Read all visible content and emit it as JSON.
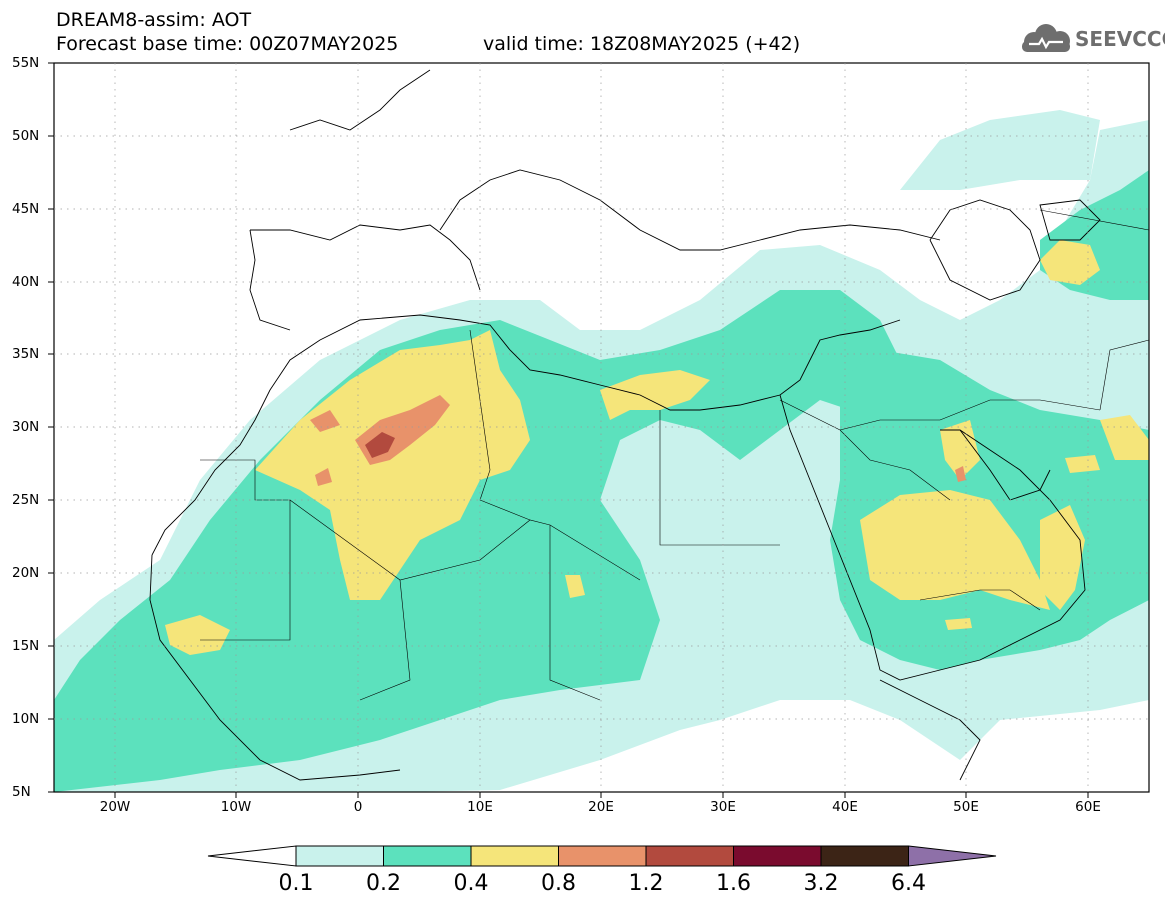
{
  "header": {
    "title_line1": "DREAM8-assim: AOT",
    "title_line2": "Forecast base time: 00Z07MAY2025",
    "title_line3": "valid time: 18Z08MAY2025 (+42)",
    "logo_text": "SEEVCCC"
  },
  "axes": {
    "lat_labels": [
      "55N",
      "50N",
      "45N",
      "40N",
      "35N",
      "30N",
      "25N",
      "20N",
      "15N",
      "10N",
      "5N"
    ],
    "lon_labels": [
      "20W",
      "10W",
      "0",
      "10E",
      "20E",
      "30E",
      "40E",
      "50E",
      "60E"
    ]
  },
  "colorbar": {
    "levels": [
      "0.1",
      "0.2",
      "0.4",
      "0.8",
      "1.2",
      "1.6",
      "3.2",
      "6.4"
    ],
    "colors": [
      "#c9f2ec",
      "#5ce1bd",
      "#f5e57a",
      "#e8926a",
      "#b24a3e",
      "#7a0b2e",
      "#3c2416",
      "#8e70a8"
    ],
    "under_color": "#ffffff",
    "over_color": "#8e70a8"
  }
}
